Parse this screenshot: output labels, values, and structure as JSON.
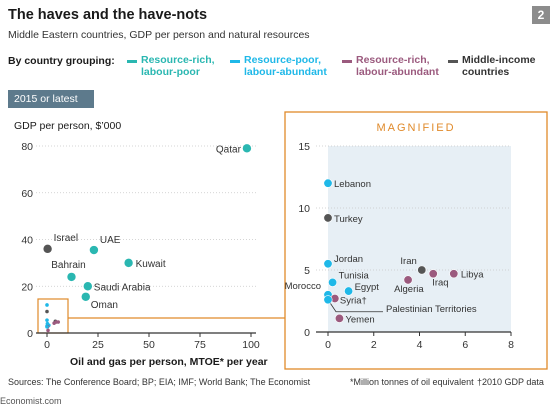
{
  "title": "The haves and the have-nots",
  "subtitle": "Middle Eastern countries, GDP per person and natural resources",
  "figure_number": "2",
  "legend_title": "By country grouping:",
  "legend": [
    {
      "label_line1": "Resource-rich,",
      "label_line2": "labour-poor",
      "color": "#2ab7b1"
    },
    {
      "label_line1": "Resource-poor,",
      "label_line2": "labour-abundant",
      "color": "#1fb8e8"
    },
    {
      "label_line1": "Resource-rich,",
      "label_line2": "labour-abundant",
      "color": "#9b5a7e"
    },
    {
      "label_line1": "Middle-income",
      "label_line2": "countries",
      "color": "#555555"
    }
  ],
  "year_badge": "2015 or latest",
  "y_axis_label": "GDP per person, $’000",
  "x_axis_label": "Oil and gas per person, MTOE* per year",
  "magnified_label": "MAGNIFIED",
  "sources": "Sources: The Conference Board; BP; EIA; IMF; World Bank; The Economist",
  "footnote_mtoe": "*Million tonnes of oil equivalent",
  "footnote_gdp": "†2010 GDP data",
  "site": "Economist.com",
  "colors": {
    "rich_poor": "#2ab7b1",
    "poor_abundant": "#1fb8e8",
    "rich_abundant": "#9b5a7e",
    "middle": "#555555",
    "accent": "#e08a2a",
    "badge": "#5d7a8c"
  },
  "chart_data": [
    {
      "type": "scatter",
      "name": "main",
      "xlim": [
        0,
        100
      ],
      "ylim": [
        0,
        80
      ],
      "x_ticks": [
        "0",
        "25",
        "50",
        "75",
        "100"
      ],
      "y_ticks": [
        "0",
        "20",
        "40",
        "60",
        "80"
      ],
      "points": [
        {
          "label": "Qatar",
          "x": 98,
          "y": 79,
          "group": "rich_poor"
        },
        {
          "label": "Israel",
          "x": 0.3,
          "y": 36,
          "group": "middle"
        },
        {
          "label": "UAE",
          "x": 23,
          "y": 35.5,
          "group": "rich_poor"
        },
        {
          "label": "Kuwait",
          "x": 40,
          "y": 30,
          "group": "rich_poor"
        },
        {
          "label": "Bahrain",
          "x": 12,
          "y": 24,
          "group": "rich_poor"
        },
        {
          "label": "Saudi Arabia",
          "x": 20,
          "y": 20,
          "group": "rich_poor"
        },
        {
          "label": "Oman",
          "x": 19,
          "y": 15.5,
          "group": "rich_poor"
        }
      ]
    },
    {
      "type": "scatter",
      "name": "magnified",
      "xlim": [
        0,
        8
      ],
      "ylim": [
        0,
        15
      ],
      "x_ticks": [
        "0",
        "2",
        "4",
        "6",
        "8"
      ],
      "y_ticks": [
        "0",
        "5",
        "10",
        "15"
      ],
      "points": [
        {
          "label": "Lebanon",
          "x": 0,
          "y": 12,
          "group": "poor_abundant"
        },
        {
          "label": "Turkey",
          "x": 0,
          "y": 9.2,
          "group": "middle"
        },
        {
          "label": "Jordan",
          "x": 0,
          "y": 5.5,
          "group": "poor_abundant"
        },
        {
          "label": "Tunisia",
          "x": 0.2,
          "y": 4,
          "group": "poor_abundant"
        },
        {
          "label": "Morocco",
          "x": 0,
          "y": 3,
          "group": "poor_abundant"
        },
        {
          "label": "Egypt",
          "x": 0.9,
          "y": 3.3,
          "group": "poor_abundant"
        },
        {
          "label": "Syria†",
          "x": 0.3,
          "y": 2.7,
          "group": "rich_abundant"
        },
        {
          "label": "Palestinian Territories",
          "x": 0,
          "y": 2.6,
          "group": "poor_abundant"
        },
        {
          "label": "Yemen",
          "x": 0.5,
          "y": 1.1,
          "group": "rich_abundant"
        },
        {
          "label": "Iran",
          "x": 4.1,
          "y": 5,
          "group": "middle"
        },
        {
          "label": "Algeria",
          "x": 3.5,
          "y": 4.2,
          "group": "rich_abundant"
        },
        {
          "label": "Iraq",
          "x": 4.6,
          "y": 4.7,
          "group": "rich_abundant"
        },
        {
          "label": "Libya",
          "x": 5.5,
          "y": 4.7,
          "group": "rich_abundant"
        }
      ]
    }
  ]
}
